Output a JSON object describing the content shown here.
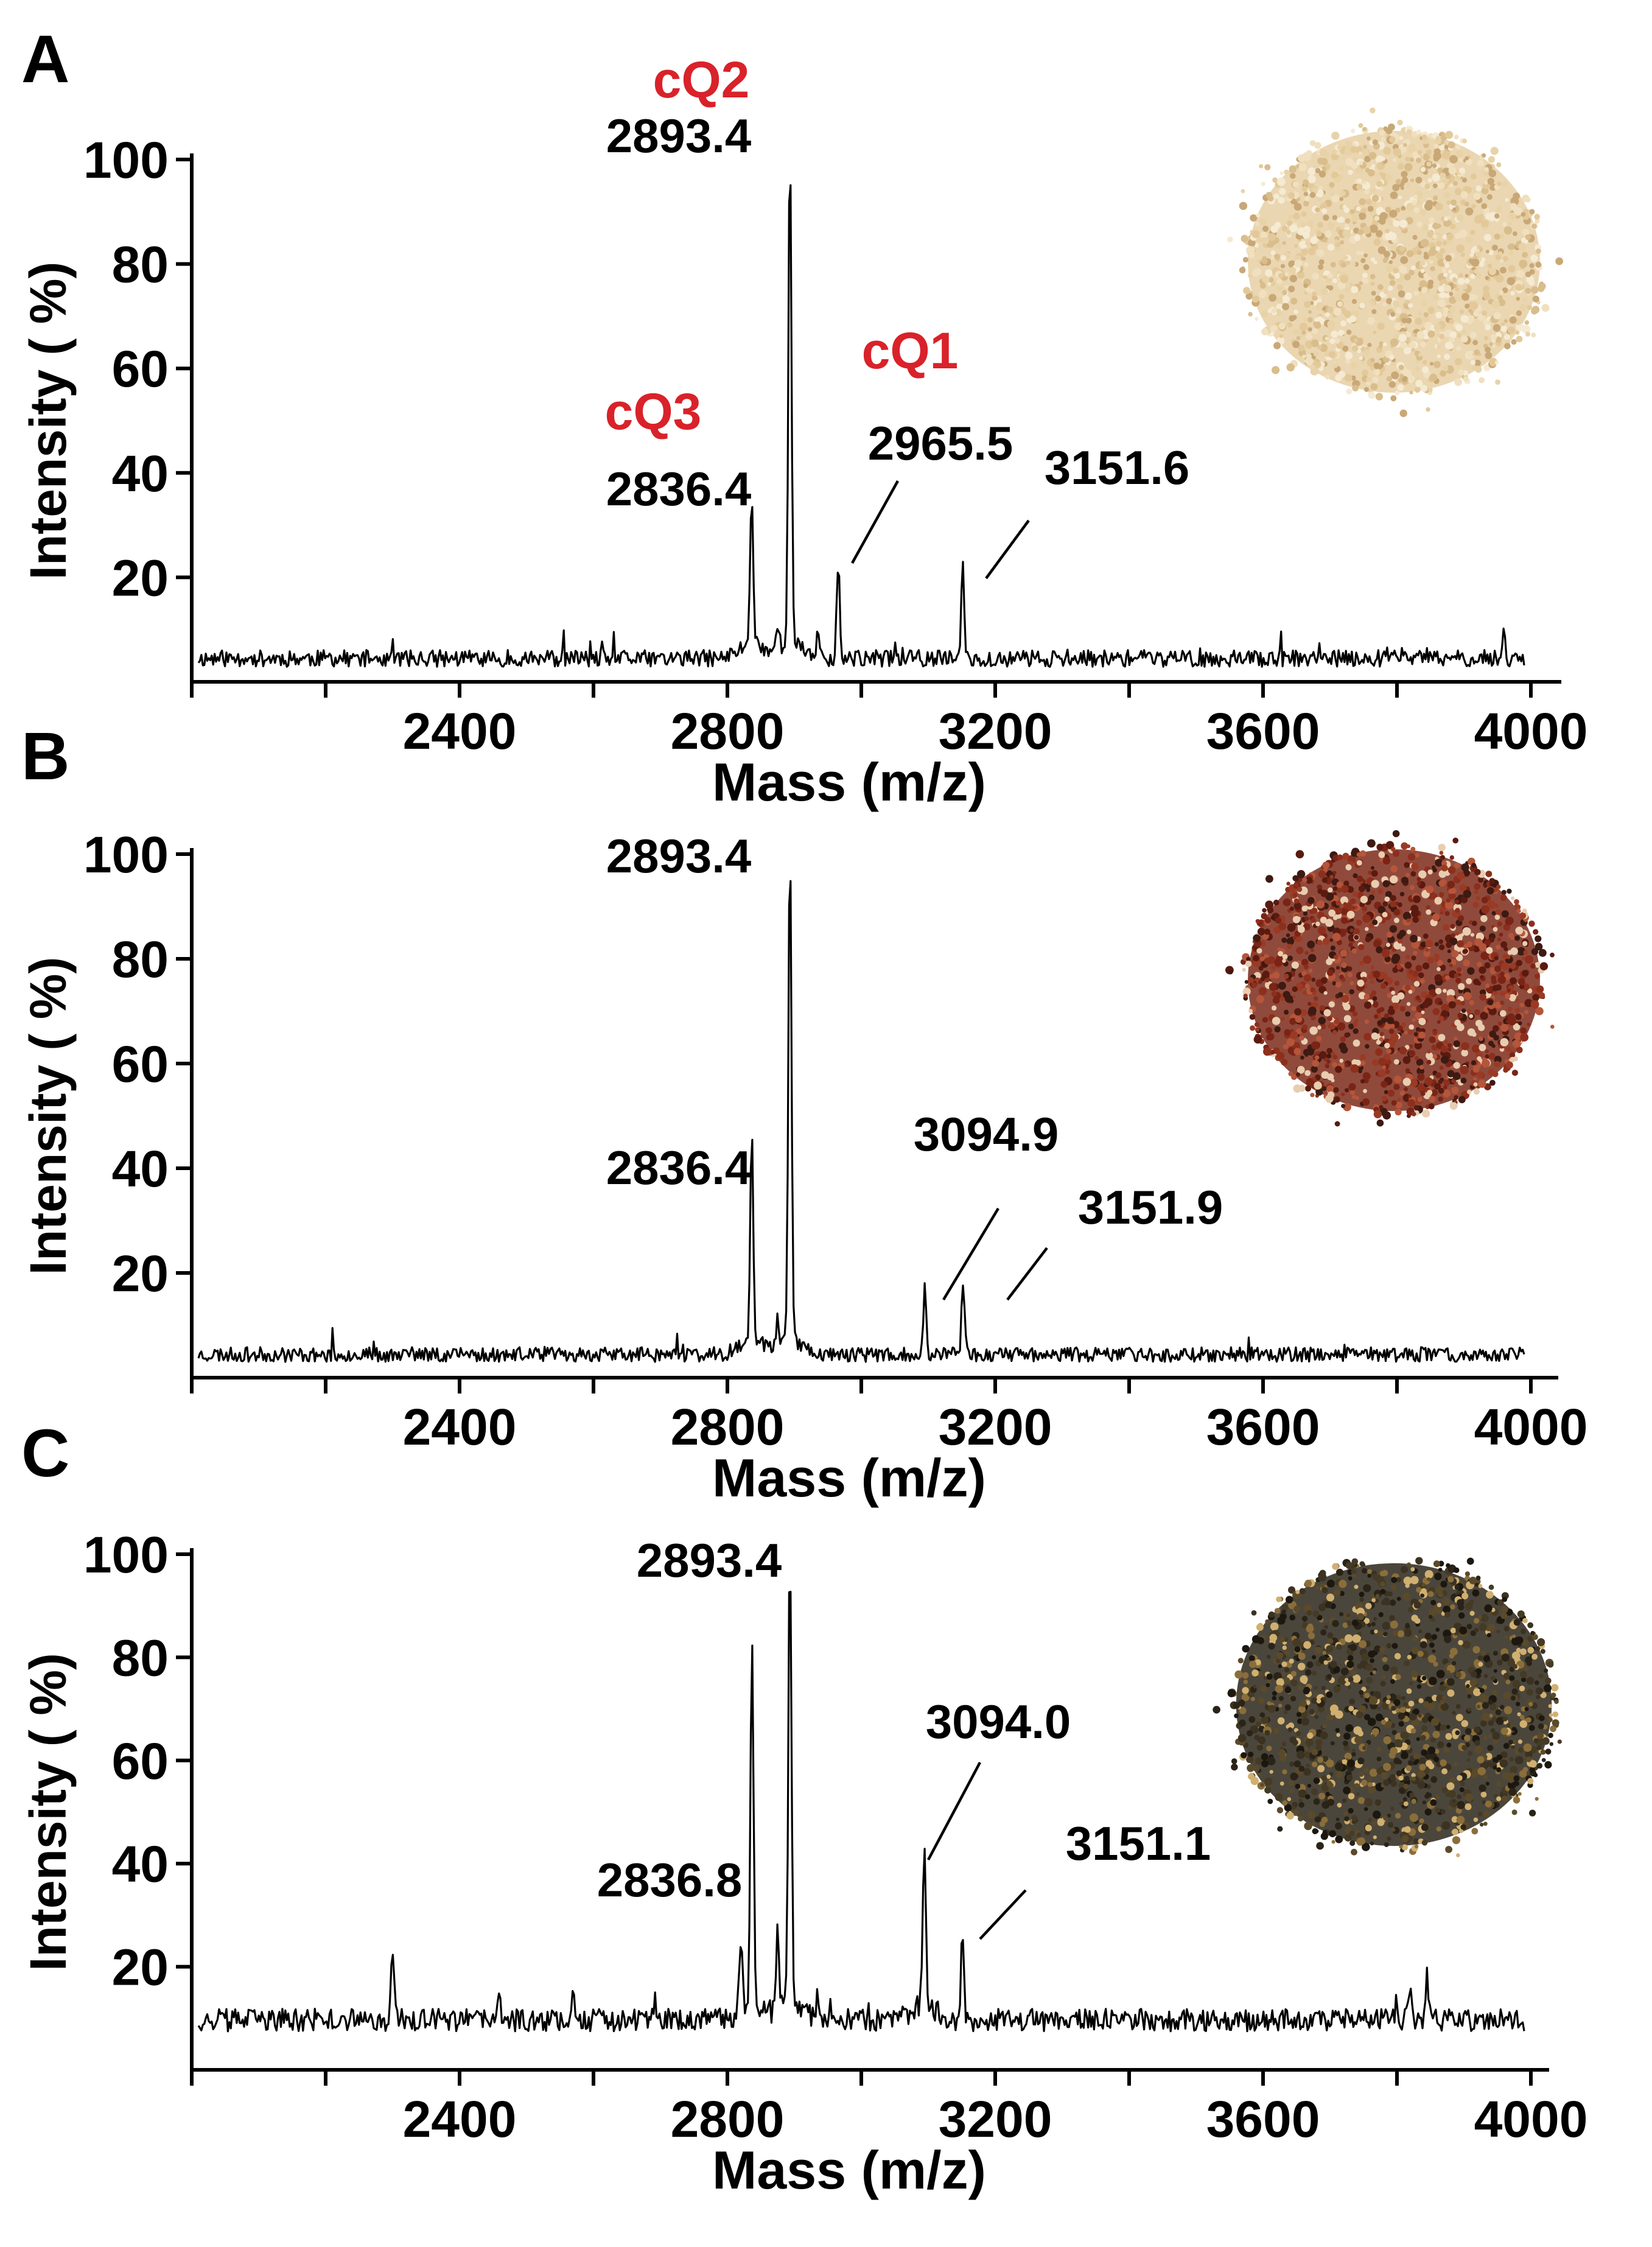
{
  "colors": {
    "axis": "#000000",
    "trace": "#000000",
    "compound_label": "#d9222a",
    "text": "#000000"
  },
  "chart_data": [
    {
      "type": "line",
      "panel_label": "A",
      "xlabel": "Mass (m/z)",
      "ylabel": "Intensity ( %)",
      "xlim": [
        2000,
        4000
      ],
      "ylim": [
        0,
        100
      ],
      "xticks": [
        "2400",
        "2800",
        "3200",
        "3600",
        "4000"
      ],
      "yticks": [
        "20",
        "40",
        "60",
        "80",
        "100"
      ],
      "baseline": 4,
      "noise_seed": 11,
      "noise_amp": 1.6,
      "peaks": [
        {
          "x": 2836.4,
          "y": 33,
          "label": "2836.4",
          "compound": "cQ3"
        },
        {
          "x": 2875,
          "y": 8
        },
        {
          "x": 2893.4,
          "y": 100,
          "label": "2893.4",
          "compound": "cQ2"
        },
        {
          "x": 2935,
          "y": 9
        },
        {
          "x": 2965.5,
          "y": 22,
          "label": "2965.5",
          "compound": "cQ1"
        },
        {
          "x": 3050,
          "y": 6
        },
        {
          "x": 3151.6,
          "y": 21,
          "label": "3151.6"
        },
        {
          "x": 3810,
          "y": 6
        },
        {
          "x": 3960,
          "y": 9
        }
      ],
      "inset_image": "white-quinoa-seeds"
    },
    {
      "type": "line",
      "panel_label": "B",
      "xlabel": "Mass (m/z)",
      "ylabel": "Intensity ( %)",
      "xlim": [
        2000,
        4000
      ],
      "ylim": [
        0,
        100
      ],
      "xticks": [
        "2400",
        "2800",
        "3200",
        "3600",
        "4000"
      ],
      "yticks": [
        "20",
        "40",
        "60",
        "80",
        "100"
      ],
      "baseline": 4,
      "noise_seed": 23,
      "noise_amp": 1.4,
      "peaks": [
        {
          "x": 2836.4,
          "y": 44,
          "label": "2836.4"
        },
        {
          "x": 2875,
          "y": 9
        },
        {
          "x": 2893.4,
          "y": 100,
          "label": "2893.4"
        },
        {
          "x": 3094.9,
          "y": 17,
          "label": "3094.9"
        },
        {
          "x": 3151.9,
          "y": 18,
          "label": "3151.9"
        }
      ],
      "inset_image": "red-quinoa-seeds"
    },
    {
      "type": "line",
      "panel_label": "C",
      "xlabel": "Mass (m/z)",
      "ylabel": "Intensity ( %)",
      "xlim": [
        2000,
        4000
      ],
      "ylim": [
        0,
        100
      ],
      "xticks": [
        "2400",
        "2800",
        "3200",
        "3600",
        "4000"
      ],
      "yticks": [
        "20",
        "40",
        "60",
        "80",
        "100"
      ],
      "baseline": 9,
      "noise_seed": 37,
      "noise_amp": 2.2,
      "peaks": [
        {
          "x": 2300,
          "y": 24
        },
        {
          "x": 2460,
          "y": 13
        },
        {
          "x": 2570,
          "y": 16
        },
        {
          "x": 2820,
          "y": 22
        },
        {
          "x": 2836.8,
          "y": 80,
          "label": "2836.8"
        },
        {
          "x": 2875,
          "y": 24
        },
        {
          "x": 2893.4,
          "y": 99,
          "label": "2893.4"
        },
        {
          "x": 2935,
          "y": 14
        },
        {
          "x": 3094.0,
          "y": 39,
          "label": "3094.0"
        },
        {
          "x": 3151.1,
          "y": 26,
          "label": "3151.1"
        },
        {
          "x": 3800,
          "y": 13
        },
        {
          "x": 3820,
          "y": 14
        },
        {
          "x": 3845,
          "y": 17
        }
      ],
      "inset_image": "black-quinoa-seeds"
    }
  ]
}
